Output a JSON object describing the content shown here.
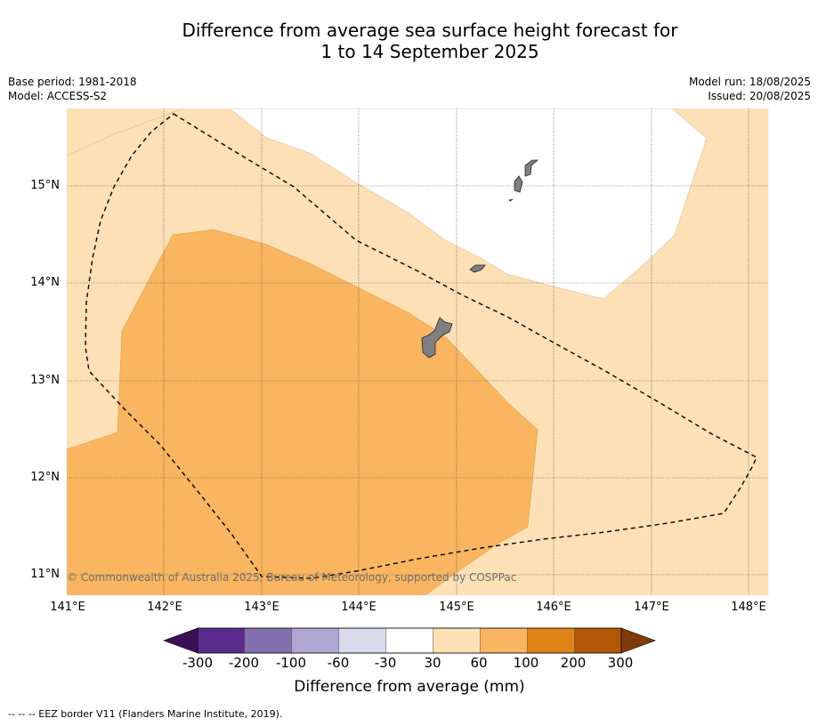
{
  "title_line1": "Difference from average sea surface height forecast for",
  "title_line2": "1 to 14 September 2025",
  "base_period": "Base period: 1981-2018",
  "model": "Model: ACCESS-S2",
  "model_run": "Model run: 18/08/2025",
  "issued": "Issued: 20/08/2025",
  "latitudes": [
    "15°N",
    "14°N",
    "13°N",
    "12°N",
    "11°N"
  ],
  "longitudes": [
    "141°E",
    "142°E",
    "143°E",
    "144°E",
    "145°E",
    "146°E",
    "147°E",
    "148°E"
  ],
  "copyright": "© Commonwealth of Australia 2025, Bureau of Meteorology, supported by COSPPac",
  "colorbar": {
    "ticks": [
      "-300",
      "-200",
      "-100",
      "-60",
      "-30",
      "30",
      "60",
      "100",
      "200",
      "300"
    ],
    "colors": [
      "#3b0f55",
      "#5a2a8c",
      "#8370b0",
      "#b0a6d2",
      "#d9d9ec",
      "#ffffff",
      "#fde0b5",
      "#f9b560",
      "#e08317",
      "#b15706",
      "#7f3b0a"
    ],
    "label": "Difference from average (mm)"
  },
  "footnote": "--  --  -- EEZ border V11 (Flanders Marine Institute, 2019).",
  "map_colors": {
    "band_30_60": "#fde0b5",
    "band_60_100": "#f9b560",
    "land": "#808080"
  }
}
